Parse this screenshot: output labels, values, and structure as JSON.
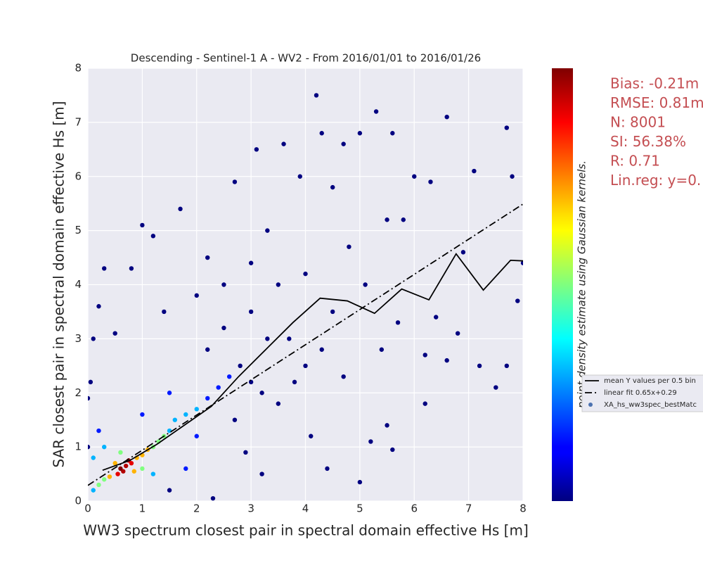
{
  "chart_data": {
    "type": "scatter",
    "title": "Descending - Sentinel-1 A - WV2 - From 2016/01/01 to 2016/01/26",
    "x_label": "WW3 spectrum closest pair in spectral domain effective Hs [m]",
    "y_label": "SAR closest pair in spectral domain effective Hs [m]",
    "colorbar_label": "point density estimate using Gaussian kernels.",
    "colormap": "jet",
    "xlim": [
      0,
      8
    ],
    "ylim": [
      0,
      8
    ],
    "xticks": [
      0,
      1,
      2,
      3,
      4,
      5,
      6,
      7,
      8
    ],
    "yticks": [
      0,
      1,
      2,
      3,
      4,
      5,
      6,
      7,
      8
    ],
    "grid": true,
    "legend": "right",
    "annotations": [
      "Bias: -0.21m",
      "RMSE: 0.81m",
      "N: 8001",
      "SI: 56.38%",
      "R: 0.71",
      "Lin.reg: y=0."
    ],
    "series": [
      {
        "name": "mean Y values per 0.5 bin",
        "kind": "line",
        "color": "#000000",
        "dash": "solid",
        "x": [
          0.27,
          0.77,
          1.27,
          1.77,
          2.27,
          2.77,
          3.27,
          3.77,
          4.27,
          4.77,
          5.27,
          5.77,
          6.27,
          6.77,
          7.27,
          7.77,
          8.0
        ],
        "y": [
          0.57,
          0.75,
          1.05,
          1.4,
          1.75,
          2.3,
          2.8,
          3.3,
          3.75,
          3.7,
          3.47,
          3.92,
          3.72,
          4.57,
          3.9,
          4.45,
          4.44
        ]
      },
      {
        "name": "linear fit 0.65x+0.29",
        "kind": "line",
        "color": "#000000",
        "dash": "dashdot",
        "x": [
          0,
          8
        ],
        "y": [
          0.29,
          5.49
        ]
      },
      {
        "name": "XA_hs_ww3spec_bestMatc",
        "kind": "points",
        "color": "#4c72b0",
        "x": [
          0.6,
          0.7,
          0.8,
          0.65,
          0.75,
          0.55,
          0.9,
          1.0,
          0.4,
          0.5,
          0.85,
          1.1,
          0.3,
          1.2,
          1.3,
          0.2,
          1.0,
          0.6,
          1.4,
          0.1,
          1.5,
          1.6,
          0.1,
          1.8,
          1.2,
          0.3,
          2.0,
          2.2,
          2.4,
          1.5,
          2.0,
          0.2,
          2.6,
          1.8,
          1.0,
          2.8,
          3.0,
          3.2,
          2.5,
          3.5,
          3.7,
          4.0,
          4.2,
          4.5,
          3.6,
          5.3,
          6.6,
          7.7,
          5.0,
          6.0,
          7.1,
          4.8,
          5.5,
          6.4,
          7.2,
          7.5,
          7.7,
          8.0,
          7.8,
          6.9,
          5.8,
          4.4,
          5.0,
          3.2,
          2.3,
          1.7,
          1.0,
          0.1,
          0.2,
          0.3,
          0.8,
          1.2,
          2.2,
          2.7,
          3.1,
          3.9,
          4.3,
          4.7,
          5.6,
          6.2,
          6.2,
          5.5,
          5.4,
          4.1,
          3.5,
          2.9,
          1.5,
          0.5,
          1.4,
          2.0,
          2.5,
          3.0,
          3.3,
          4.0,
          4.5,
          5.1,
          5.7,
          6.6,
          6.3,
          7.9,
          0.0,
          0.0,
          0.05,
          2.2,
          2.7,
          3.0,
          3.3,
          3.8,
          4.3,
          4.7,
          5.2,
          5.6,
          6.8
        ],
        "y": [
          0.6,
          0.65,
          0.7,
          0.55,
          0.75,
          0.5,
          0.8,
          0.85,
          0.45,
          0.7,
          0.55,
          0.95,
          0.4,
          1.0,
          1.1,
          0.3,
          0.6,
          0.9,
          1.2,
          0.2,
          1.3,
          1.5,
          0.8,
          1.6,
          0.5,
          1.0,
          1.7,
          1.9,
          2.1,
          2.0,
          1.2,
          1.3,
          2.3,
          0.6,
          1.6,
          2.5,
          3.5,
          2.0,
          3.2,
          4.0,
          3.0,
          2.5,
          7.5,
          5.8,
          6.6,
          7.2,
          7.1,
          6.9,
          6.8,
          6.0,
          6.1,
          4.7,
          5.2,
          3.4,
          2.5,
          2.1,
          2.5,
          4.4,
          6.0,
          4.6,
          5.2,
          0.6,
          0.35,
          0.5,
          0.05,
          5.4,
          5.1,
          3.0,
          3.6,
          4.3,
          4.3,
          4.9,
          4.5,
          5.9,
          6.5,
          6.0,
          6.8,
          6.6,
          6.8,
          1.8,
          2.7,
          1.4,
          2.8,
          1.2,
          1.8,
          0.9,
          0.2,
          3.1,
          3.5,
          3.8,
          4.0,
          4.4,
          5.0,
          4.2,
          3.5,
          4.0,
          3.3,
          2.6,
          5.9,
          3.7,
          1.0,
          1.9,
          2.2,
          2.8,
          1.5,
          2.2,
          3.0,
          2.2,
          2.8,
          2.3,
          1.1,
          0.95,
          3.1
        ],
        "density": [
          1.0,
          0.95,
          0.9,
          0.95,
          0.9,
          0.9,
          0.7,
          0.7,
          0.7,
          0.7,
          0.7,
          0.7,
          0.5,
          0.5,
          0.5,
          0.5,
          0.5,
          0.5,
          0.5,
          0.3,
          0.3,
          0.3,
          0.3,
          0.3,
          0.3,
          0.3,
          0.3,
          0.15,
          0.15,
          0.15,
          0.15,
          0.15,
          0.15,
          0.15,
          0.15,
          0,
          0,
          0,
          0,
          0,
          0,
          0,
          0,
          0,
          0,
          0,
          0,
          0,
          0,
          0,
          0,
          0,
          0,
          0,
          0,
          0,
          0,
          0,
          0,
          0,
          0,
          0,
          0,
          0,
          0,
          0,
          0,
          0,
          0,
          0,
          0,
          0,
          0,
          0,
          0,
          0,
          0,
          0,
          0,
          0,
          0,
          0,
          0,
          0,
          0,
          0,
          0,
          0,
          0,
          0,
          0,
          0,
          0,
          0,
          0,
          0,
          0,
          0,
          0,
          0,
          0,
          0,
          0,
          0,
          0,
          0,
          0,
          0,
          0,
          0,
          0,
          0,
          0
        ]
      }
    ]
  }
}
